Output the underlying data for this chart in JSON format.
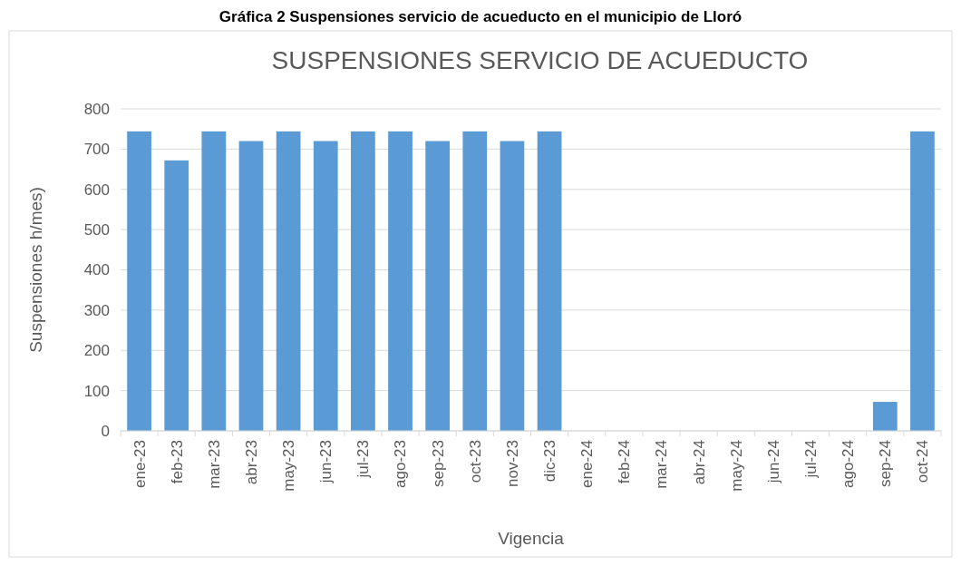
{
  "chart_data": {
    "type": "bar",
    "title": "Gráfica 2 Suspensiones servicio de acueducto en el municipio de Lloró",
    "subtitle": "SUSPENSIONES SERVICIO DE ACUEDUCTO",
    "xlabel": "Vigencia",
    "ylabel": "Suspensiones h/mes)",
    "categories": [
      "ene-23",
      "feb-23",
      "mar-23",
      "abr-23",
      "may-23",
      "jun-23",
      "jul-23",
      "ago-23",
      "sep-23",
      "oct-23",
      "nov-23",
      "dic-23",
      "ene-24",
      "feb-24",
      "mar-24",
      "abr-24",
      "may-24",
      "jun-24",
      "jul-24",
      "ago-24",
      "sep-24",
      "oct-24"
    ],
    "values": [
      744,
      672,
      744,
      720,
      744,
      720,
      744,
      744,
      720,
      744,
      720,
      744,
      0,
      0,
      0,
      0,
      0,
      0,
      0,
      0,
      72,
      744
    ],
    "color": "#5b9bd5",
    "ylim": [
      0,
      800
    ],
    "yticks": [
      0,
      100,
      200,
      300,
      400,
      500,
      600,
      700,
      800
    ],
    "grid": "y"
  }
}
